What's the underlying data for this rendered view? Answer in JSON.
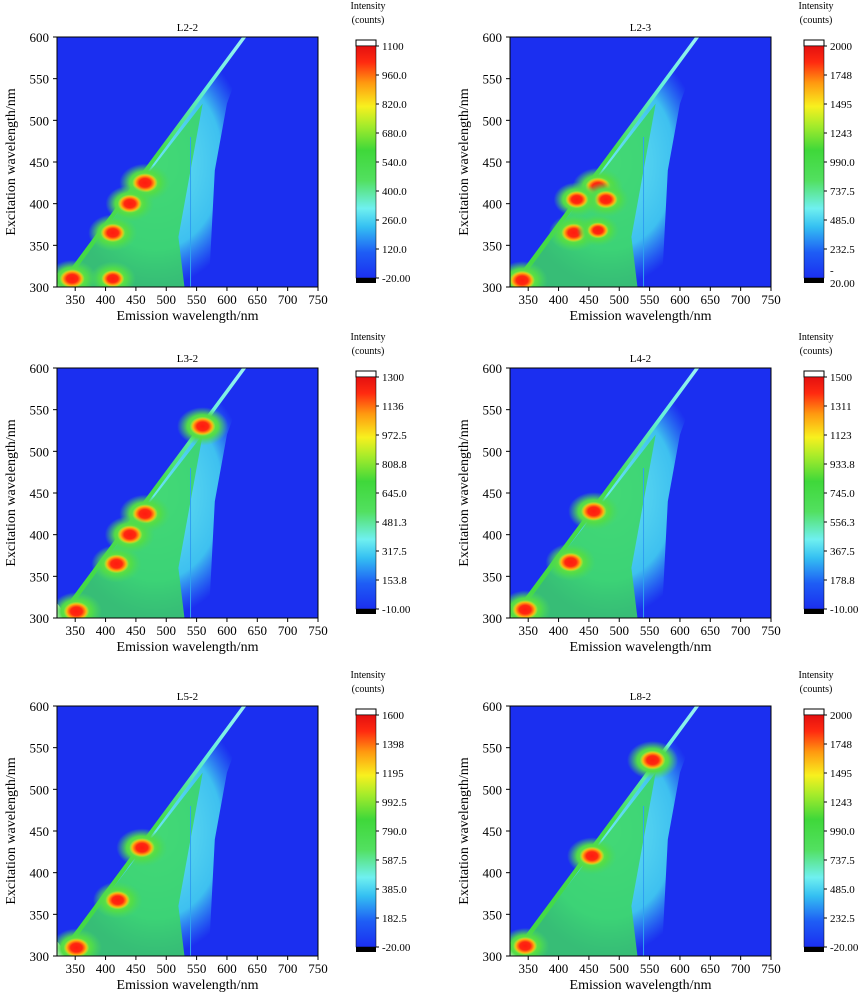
{
  "chart_data": [
    {
      "type": "heatmap",
      "title": "L2-2",
      "xlabel": "Emission wavelength/nm",
      "ylabel": "Excitation wavelength/nm",
      "xlim": [
        320,
        750
      ],
      "ylim": [
        300,
        600
      ],
      "xticks": [
        350,
        400,
        450,
        500,
        550,
        600,
        650,
        700,
        750
      ],
      "yticks": [
        300,
        350,
        400,
        450,
        500,
        550,
        600
      ],
      "colorbar": {
        "title": [
          "Intensity",
          "(counts)"
        ],
        "tick_labels": [
          "1100",
          "960.0",
          "820.0",
          "680.0",
          "540.0",
          "400.0",
          "260.0",
          "120.0",
          "-20.00"
        ]
      },
      "peaks": [
        {
          "em": 412,
          "ex": 365,
          "intensity": 1020
        },
        {
          "em": 465,
          "ex": 425,
          "intensity": 1100
        },
        {
          "em": 440,
          "ex": 400,
          "intensity": 1000
        },
        {
          "em": 412,
          "ex": 310,
          "intensity": 900
        },
        {
          "em": 345,
          "ex": 310,
          "intensity": 1050
        }
      ]
    },
    {
      "type": "heatmap",
      "title": "L2-3",
      "xlabel": "Emission wavelength/nm",
      "ylabel": "Excitation wavelength/nm",
      "xlim": [
        320,
        750
      ],
      "ylim": [
        300,
        600
      ],
      "xticks": [
        350,
        400,
        450,
        500,
        550,
        600,
        650,
        700,
        750
      ],
      "yticks": [
        300,
        350,
        400,
        450,
        500,
        550,
        600
      ],
      "colorbar": {
        "title": [
          "Intensity",
          "(counts)"
        ],
        "tick_labels": [
          "2000",
          "1748",
          "1495",
          "1243",
          "990.0",
          "737.5",
          "485.0",
          "232.5",
          "-",
          "20.00"
        ]
      },
      "peaks": [
        {
          "em": 425,
          "ex": 365,
          "intensity": 1900
        },
        {
          "em": 465,
          "ex": 420,
          "intensity": 2000
        },
        {
          "em": 478,
          "ex": 405,
          "intensity": 1700
        },
        {
          "em": 430,
          "ex": 405,
          "intensity": 1650
        },
        {
          "em": 465,
          "ex": 368,
          "intensity": 1400
        },
        {
          "em": 340,
          "ex": 308,
          "intensity": 2000
        }
      ]
    },
    {
      "type": "heatmap",
      "title": "L3-2",
      "xlabel": "Emission wavelength/nm",
      "ylabel": "Excitation wavelength/nm",
      "xlim": [
        320,
        750
      ],
      "ylim": [
        300,
        600
      ],
      "xticks": [
        350,
        400,
        450,
        500,
        550,
        600,
        650,
        700,
        750
      ],
      "yticks": [
        300,
        350,
        400,
        450,
        500,
        550,
        600
      ],
      "colorbar": {
        "title": [
          "Intensity",
          "(counts)"
        ],
        "tick_labels": [
          "1300",
          "1136",
          "972.5",
          "808.8",
          "645.0",
          "481.3",
          "317.5",
          "153.8",
          "-10.00"
        ]
      },
      "peaks": [
        {
          "em": 418,
          "ex": 365,
          "intensity": 1250
        },
        {
          "em": 465,
          "ex": 425,
          "intensity": 1300
        },
        {
          "em": 440,
          "ex": 400,
          "intensity": 1250
        },
        {
          "em": 560,
          "ex": 530,
          "intensity": 1300
        },
        {
          "em": 352,
          "ex": 308,
          "intensity": 1300
        }
      ]
    },
    {
      "type": "heatmap",
      "title": "L4-2",
      "xlabel": "Emission wavelength/nm",
      "ylabel": "Excitation wavelength/nm",
      "xlim": [
        320,
        750
      ],
      "ylim": [
        300,
        600
      ],
      "xticks": [
        350,
        400,
        450,
        500,
        550,
        600,
        650,
        700,
        750
      ],
      "yticks": [
        300,
        350,
        400,
        450,
        500,
        550,
        600
      ],
      "colorbar": {
        "title": [
          "Intensity",
          "(counts)"
        ],
        "tick_labels": [
          "1500",
          "1311",
          "1123",
          "933.8",
          "745.0",
          "556.3",
          "367.5",
          "178.8",
          "-10.00"
        ]
      },
      "peaks": [
        {
          "em": 420,
          "ex": 367,
          "intensity": 1450
        },
        {
          "em": 458,
          "ex": 428,
          "intensity": 1500
        },
        {
          "em": 345,
          "ex": 310,
          "intensity": 1500
        }
      ]
    },
    {
      "type": "heatmap",
      "title": "L5-2",
      "xlabel": "Emission wavelength/nm",
      "ylabel": "Excitation wavelength/nm",
      "xlim": [
        320,
        750
      ],
      "ylim": [
        300,
        600
      ],
      "xticks": [
        350,
        400,
        450,
        500,
        550,
        600,
        650,
        700,
        750
      ],
      "yticks": [
        300,
        350,
        400,
        450,
        500,
        550,
        600
      ],
      "colorbar": {
        "title": [
          "Intensity",
          "(counts)"
        ],
        "tick_labels": [
          "1600",
          "1398",
          "1195",
          "992.5",
          "790.0",
          "587.5",
          "385.0",
          "182.5",
          "-20.00"
        ]
      },
      "peaks": [
        {
          "em": 420,
          "ex": 367,
          "intensity": 1500
        },
        {
          "em": 460,
          "ex": 430,
          "intensity": 1600
        },
        {
          "em": 352,
          "ex": 310,
          "intensity": 1600
        }
      ]
    },
    {
      "type": "heatmap",
      "title": "L8-2",
      "xlabel": "Emission wavelength/nm",
      "ylabel": "Excitation wavelength/nm",
      "xlim": [
        320,
        750
      ],
      "ylim": [
        300,
        600
      ],
      "xticks": [
        350,
        400,
        450,
        500,
        550,
        600,
        650,
        700,
        750
      ],
      "yticks": [
        300,
        350,
        400,
        450,
        500,
        550,
        600
      ],
      "colorbar": {
        "title": [
          "Intensity",
          "(counts)"
        ],
        "tick_labels": [
          "2000",
          "1748",
          "1495",
          "1243",
          "990.0",
          "737.5",
          "485.0",
          "232.5",
          "-20.00"
        ]
      },
      "peaks": [
        {
          "em": 555,
          "ex": 535,
          "intensity": 2000
        },
        {
          "em": 455,
          "ex": 420,
          "intensity": 1900
        },
        {
          "em": 345,
          "ex": 312,
          "intensity": 1800
        }
      ]
    }
  ]
}
